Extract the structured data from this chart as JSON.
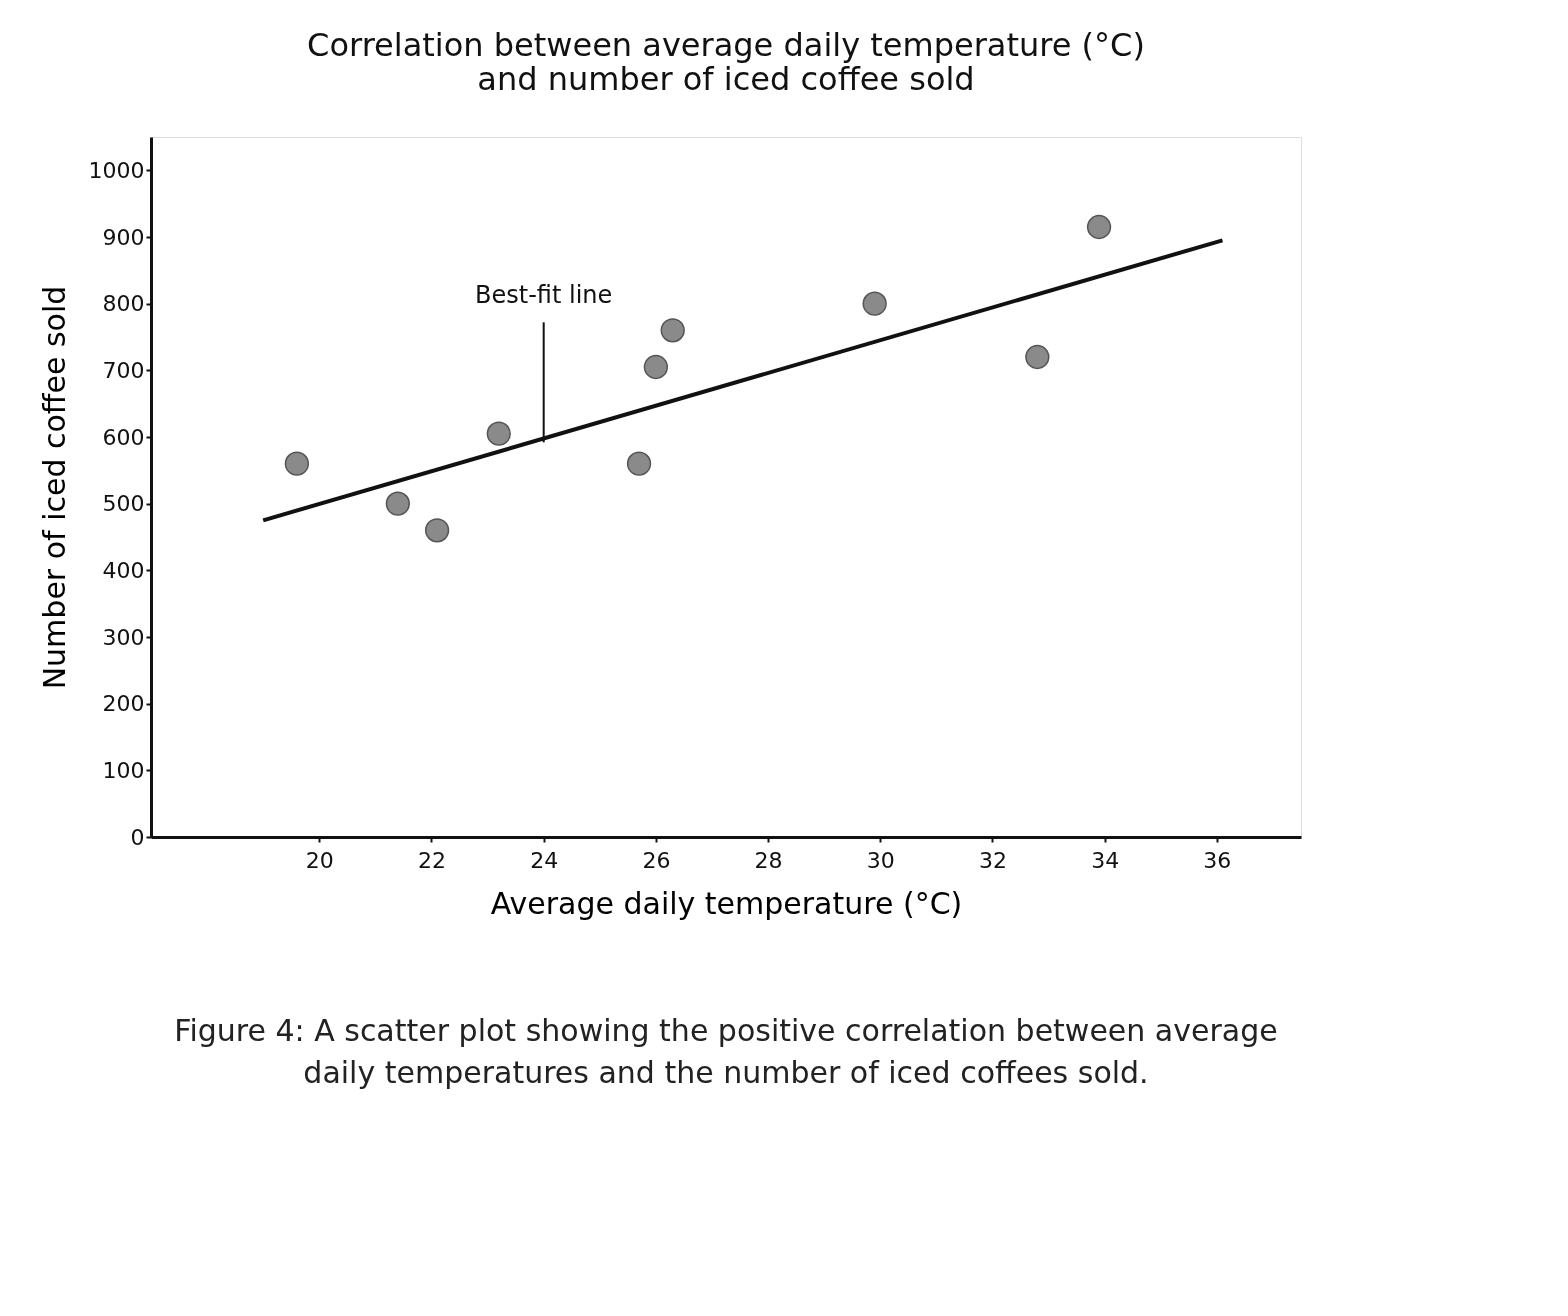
{
  "chart_data": {
    "type": "scatter",
    "title": "Correlation between average daily temperature (°C)\nand number of iced coffee sold",
    "xlabel": "Average daily temperature (°C)",
    "ylabel": "Number of iced coffee sold",
    "xlim": [
      17,
      37.5
    ],
    "xticks": [
      20,
      22,
      24,
      26,
      28,
      30,
      32,
      34,
      36
    ],
    "ylim": [
      0,
      1050
    ],
    "yticks": [
      0,
      100,
      200,
      300,
      400,
      500,
      600,
      700,
      800,
      900,
      1000
    ],
    "grid": false,
    "marker": "circle",
    "series": [
      {
        "color": "#8a8a8a",
        "x": [
          19.6,
          21.4,
          22.1,
          23.2,
          25.7,
          26.0,
          26.3,
          29.9,
          32.8,
          33.9
        ],
        "values": [
          560,
          500,
          460,
          605,
          560,
          705,
          760,
          800,
          720,
          915
        ]
      },
      {
        "type": "line",
        "marker": "none",
        "color": "#111111",
        "x": [
          19.0,
          36.1
        ],
        "values": [
          475,
          895
        ]
      }
    ],
    "annotations": [
      {
        "text": "Best-fit line",
        "x": 24,
        "y": 592
      },
      "Figure 4: A scatter plot showing the positive correlation between average daily temperatures and the number of iced coffees sold."
    ]
  }
}
